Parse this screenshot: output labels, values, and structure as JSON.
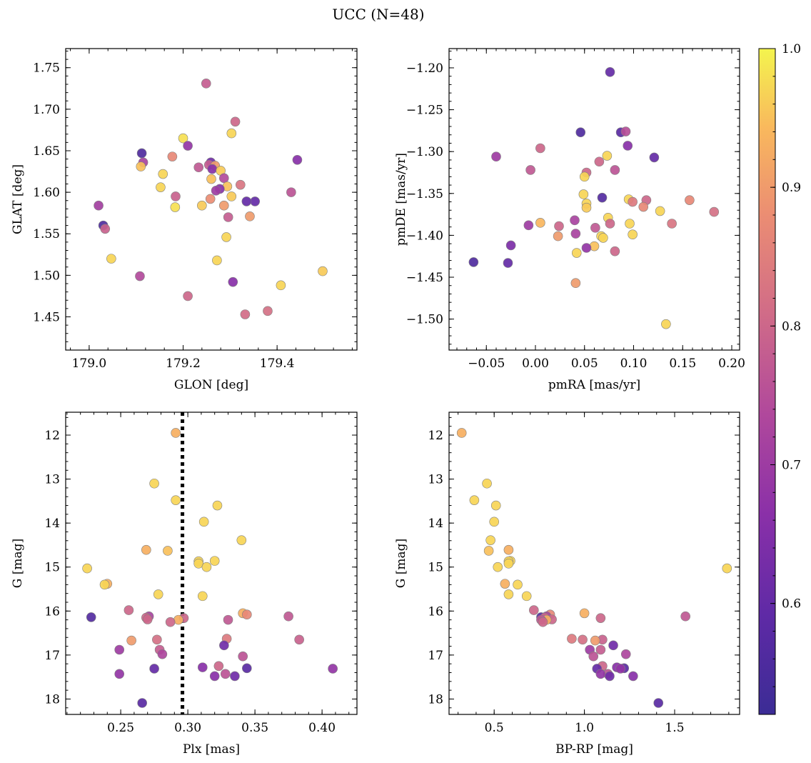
{
  "figure": {
    "title": "UCC (N=48)"
  },
  "colorbar": {
    "min": 0.52,
    "max": 1.0,
    "ticks": [
      0.6,
      0.7,
      0.8,
      0.9,
      1.0
    ],
    "tick_labels": [
      "0.6",
      "0.7",
      "0.8",
      "0.9",
      "1.0"
    ],
    "colormap": "plasma"
  },
  "chart_data": [
    {
      "type": "scatter",
      "id": "glon_glat",
      "xlabel": "GLON [deg]",
      "ylabel": "GLAT [deg]",
      "xlim": [
        178.95,
        179.57
      ],
      "ylim": [
        1.41,
        1.773
      ],
      "y_inverted": false,
      "xticks": [
        179.0,
        179.2,
        179.4
      ],
      "xtick_labels": [
        "179.0",
        "179.2",
        "179.4"
      ],
      "yticks": [
        1.45,
        1.5,
        1.55,
        1.6,
        1.65,
        1.7,
        1.75
      ],
      "ytick_labels": [
        "1.45",
        "1.50",
        "1.55",
        "1.60",
        "1.65",
        "1.70",
        "1.75"
      ],
      "points": [
        {
          "x": 179.249,
          "y": 1.731,
          "c": 0.78
        },
        {
          "x": 179.311,
          "y": 1.685,
          "c": 0.8
        },
        {
          "x": 179.303,
          "y": 1.671,
          "c": 0.97
        },
        {
          "x": 179.2,
          "y": 1.665,
          "c": 0.98
        },
        {
          "x": 179.21,
          "y": 1.656,
          "c": 0.68
        },
        {
          "x": 179.112,
          "y": 1.647,
          "c": 0.56
        },
        {
          "x": 179.177,
          "y": 1.643,
          "c": 0.87
        },
        {
          "x": 179.443,
          "y": 1.639,
          "c": 0.66
        },
        {
          "x": 179.259,
          "y": 1.636,
          "c": 0.62
        },
        {
          "x": 179.115,
          "y": 1.636,
          "c": 0.72
        },
        {
          "x": 179.255,
          "y": 1.633,
          "c": 0.78
        },
        {
          "x": 179.268,
          "y": 1.632,
          "c": 0.9
        },
        {
          "x": 179.11,
          "y": 1.631,
          "c": 0.95
        },
        {
          "x": 179.233,
          "y": 1.63,
          "c": 0.77
        },
        {
          "x": 179.262,
          "y": 1.628,
          "c": 0.66
        },
        {
          "x": 179.28,
          "y": 1.626,
          "c": 0.96
        },
        {
          "x": 179.157,
          "y": 1.622,
          "c": 0.97
        },
        {
          "x": 179.287,
          "y": 1.617,
          "c": 0.74
        },
        {
          "x": 179.26,
          "y": 1.616,
          "c": 0.95
        },
        {
          "x": 179.322,
          "y": 1.609,
          "c": 0.83
        },
        {
          "x": 179.294,
          "y": 1.607,
          "c": 0.95
        },
        {
          "x": 179.152,
          "y": 1.606,
          "c": 0.97
        },
        {
          "x": 179.278,
          "y": 1.604,
          "c": 0.66
        },
        {
          "x": 179.27,
          "y": 1.602,
          "c": 0.7
        },
        {
          "x": 179.43,
          "y": 1.6,
          "c": 0.76
        },
        {
          "x": 179.184,
          "y": 1.595,
          "c": 0.79
        },
        {
          "x": 179.303,
          "y": 1.595,
          "c": 0.96
        },
        {
          "x": 179.258,
          "y": 1.592,
          "c": 0.88
        },
        {
          "x": 179.353,
          "y": 1.589,
          "c": 0.6
        },
        {
          "x": 179.335,
          "y": 1.589,
          "c": 0.6
        },
        {
          "x": 179.02,
          "y": 1.584,
          "c": 0.71
        },
        {
          "x": 179.24,
          "y": 1.584,
          "c": 0.96
        },
        {
          "x": 179.287,
          "y": 1.584,
          "c": 0.9
        },
        {
          "x": 179.183,
          "y": 1.582,
          "c": 0.98
        },
        {
          "x": 179.342,
          "y": 1.571,
          "c": 0.9
        },
        {
          "x": 179.296,
          "y": 1.57,
          "c": 0.78
        },
        {
          "x": 179.03,
          "y": 1.56,
          "c": 0.56
        },
        {
          "x": 179.034,
          "y": 1.556,
          "c": 0.79
        },
        {
          "x": 179.292,
          "y": 1.546,
          "c": 0.97
        },
        {
          "x": 179.047,
          "y": 1.52,
          "c": 0.97
        },
        {
          "x": 179.272,
          "y": 1.518,
          "c": 0.97
        },
        {
          "x": 179.497,
          "y": 1.505,
          "c": 0.96
        },
        {
          "x": 179.108,
          "y": 1.499,
          "c": 0.74
        },
        {
          "x": 179.306,
          "y": 1.492,
          "c": 0.66
        },
        {
          "x": 179.408,
          "y": 1.488,
          "c": 0.97
        },
        {
          "x": 179.21,
          "y": 1.475,
          "c": 0.8
        },
        {
          "x": 179.38,
          "y": 1.457,
          "c": 0.82
        },
        {
          "x": 179.332,
          "y": 1.453,
          "c": 0.81
        }
      ]
    },
    {
      "type": "scatter",
      "id": "pmra_pmde",
      "xlabel": "pmRA [mas/yr]",
      "ylabel": "pmDE [mas/yr]",
      "xlim": [
        -0.088,
        0.208
      ],
      "ylim": [
        -1.537,
        -1.177
      ],
      "y_inverted": false,
      "xticks": [
        -0.05,
        0.0,
        0.05,
        0.1,
        0.15,
        0.2
      ],
      "xtick_labels": [
        "−0.05",
        "0.00",
        "0.05",
        "0.10",
        "0.15",
        "0.20"
      ],
      "yticks": [
        -1.5,
        -1.45,
        -1.4,
        -1.35,
        -1.3,
        -1.25,
        -1.2
      ],
      "ytick_labels": [
        "−1.50",
        "−1.45",
        "−1.40",
        "−1.35",
        "−1.30",
        "−1.25",
        "−1.20"
      ],
      "points": [
        {
          "x": 0.076,
          "y": -1.205,
          "c": 0.6
        },
        {
          "x": 0.046,
          "y": -1.277,
          "c": 0.56
        },
        {
          "x": 0.087,
          "y": -1.277,
          "c": 0.58
        },
        {
          "x": 0.092,
          "y": -1.276,
          "c": 0.75
        },
        {
          "x": 0.094,
          "y": -1.293,
          "c": 0.66
        },
        {
          "x": 0.005,
          "y": -1.296,
          "c": 0.8
        },
        {
          "x": -0.04,
          "y": -1.306,
          "c": 0.7
        },
        {
          "x": 0.073,
          "y": -1.305,
          "c": 0.97
        },
        {
          "x": 0.121,
          "y": -1.307,
          "c": 0.6
        },
        {
          "x": 0.065,
          "y": -1.312,
          "c": 0.8
        },
        {
          "x": -0.005,
          "y": -1.322,
          "c": 0.77
        },
        {
          "x": 0.081,
          "y": -1.322,
          "c": 0.76
        },
        {
          "x": 0.052,
          "y": -1.325,
          "c": 0.8
        },
        {
          "x": 0.05,
          "y": -1.33,
          "c": 0.97
        },
        {
          "x": 0.049,
          "y": -1.351,
          "c": 0.97
        },
        {
          "x": 0.068,
          "y": -1.355,
          "c": 0.57
        },
        {
          "x": 0.095,
          "y": -1.357,
          "c": 0.97
        },
        {
          "x": 0.113,
          "y": -1.358,
          "c": 0.8
        },
        {
          "x": 0.157,
          "y": -1.358,
          "c": 0.87
        },
        {
          "x": 0.099,
          "y": -1.36,
          "c": 0.84
        },
        {
          "x": 0.052,
          "y": -1.362,
          "c": 0.97
        },
        {
          "x": 0.11,
          "y": -1.366,
          "c": 0.87
        },
        {
          "x": 0.052,
          "y": -1.367,
          "c": 0.96
        },
        {
          "x": 0.127,
          "y": -1.371,
          "c": 0.97
        },
        {
          "x": 0.182,
          "y": -1.372,
          "c": 0.82
        },
        {
          "x": 0.074,
          "y": -1.379,
          "c": 0.97
        },
        {
          "x": 0.04,
          "y": -1.382,
          "c": 0.72
        },
        {
          "x": 0.005,
          "y": -1.385,
          "c": 0.94
        },
        {
          "x": 0.076,
          "y": -1.386,
          "c": 0.8
        },
        {
          "x": 0.096,
          "y": -1.386,
          "c": 0.97
        },
        {
          "x": 0.139,
          "y": -1.386,
          "c": 0.83
        },
        {
          "x": -0.007,
          "y": -1.388,
          "c": 0.7
        },
        {
          "x": 0.024,
          "y": -1.389,
          "c": 0.8
        },
        {
          "x": 0.061,
          "y": -1.391,
          "c": 0.77
        },
        {
          "x": 0.041,
          "y": -1.398,
          "c": 0.72
        },
        {
          "x": 0.099,
          "y": -1.399,
          "c": 0.97
        },
        {
          "x": 0.023,
          "y": -1.401,
          "c": 0.9
        },
        {
          "x": 0.067,
          "y": -1.401,
          "c": 0.97
        },
        {
          "x": 0.069,
          "y": -1.403,
          "c": 0.97
        },
        {
          "x": -0.025,
          "y": -1.412,
          "c": 0.64
        },
        {
          "x": 0.06,
          "y": -1.413,
          "c": 0.95
        },
        {
          "x": 0.052,
          "y": -1.415,
          "c": 0.68
        },
        {
          "x": 0.081,
          "y": -1.419,
          "c": 0.8
        },
        {
          "x": 0.042,
          "y": -1.421,
          "c": 0.97
        },
        {
          "x": -0.063,
          "y": -1.432,
          "c": 0.56
        },
        {
          "x": -0.028,
          "y": -1.433,
          "c": 0.6
        },
        {
          "x": 0.041,
          "y": -1.457,
          "c": 0.9
        },
        {
          "x": 0.133,
          "y": -1.506,
          "c": 0.97
        }
      ]
    },
    {
      "type": "scatter",
      "id": "plx_g",
      "xlabel": "Plx [mas]",
      "ylabel": "G [mag]",
      "xlim": [
        0.209,
        0.426
      ],
      "ylim": [
        18.35,
        11.48
      ],
      "y_inverted": true,
      "vline": {
        "x": 0.296,
        "style": "dotted"
      },
      "xticks": [
        0.25,
        0.3,
        0.35,
        0.4
      ],
      "xtick_labels": [
        "0.25",
        "0.30",
        "0.35",
        "0.40"
      ],
      "yticks": [
        12,
        13,
        14,
        15,
        16,
        17,
        18
      ],
      "ytick_labels": [
        "12",
        "13",
        "14",
        "15",
        "16",
        "17",
        "18"
      ],
      "points": [
        {
          "x": 0.291,
          "y": 11.95,
          "c": 0.93
        },
        {
          "x": 0.275,
          "y": 13.1,
          "c": 0.97
        },
        {
          "x": 0.291,
          "y": 13.48,
          "c": 0.97
        },
        {
          "x": 0.322,
          "y": 13.6,
          "c": 0.97
        },
        {
          "x": 0.312,
          "y": 13.97,
          "c": 0.97
        },
        {
          "x": 0.34,
          "y": 14.39,
          "c": 0.97
        },
        {
          "x": 0.269,
          "y": 14.61,
          "c": 0.93
        },
        {
          "x": 0.285,
          "y": 14.63,
          "c": 0.95
        },
        {
          "x": 0.32,
          "y": 14.86,
          "c": 0.97
        },
        {
          "x": 0.308,
          "y": 14.87,
          "c": 0.97
        },
        {
          "x": 0.308,
          "y": 14.92,
          "c": 0.97
        },
        {
          "x": 0.314,
          "y": 15.0,
          "c": 0.97
        },
        {
          "x": 0.225,
          "y": 15.03,
          "c": 0.97
        },
        {
          "x": 0.24,
          "y": 15.38,
          "c": 0.93
        },
        {
          "x": 0.238,
          "y": 15.4,
          "c": 0.97
        },
        {
          "x": 0.278,
          "y": 15.62,
          "c": 0.97
        },
        {
          "x": 0.311,
          "y": 15.66,
          "c": 0.97
        },
        {
          "x": 0.256,
          "y": 15.98,
          "c": 0.8
        },
        {
          "x": 0.341,
          "y": 16.05,
          "c": 0.93
        },
        {
          "x": 0.344,
          "y": 16.08,
          "c": 0.87
        },
        {
          "x": 0.375,
          "y": 16.12,
          "c": 0.77
        },
        {
          "x": 0.228,
          "y": 16.14,
          "c": 0.57
        },
        {
          "x": 0.271,
          "y": 16.12,
          "c": 0.72
        },
        {
          "x": 0.269,
          "y": 16.15,
          "c": 0.8
        },
        {
          "x": 0.297,
          "y": 16.16,
          "c": 0.8
        },
        {
          "x": 0.27,
          "y": 16.19,
          "c": 0.8
        },
        {
          "x": 0.293,
          "y": 16.2,
          "c": 0.93
        },
        {
          "x": 0.33,
          "y": 16.2,
          "c": 0.77
        },
        {
          "x": 0.287,
          "y": 16.25,
          "c": 0.8
        },
        {
          "x": 0.329,
          "y": 16.63,
          "c": 0.84
        },
        {
          "x": 0.277,
          "y": 16.65,
          "c": 0.82
        },
        {
          "x": 0.383,
          "y": 16.65,
          "c": 0.79
        },
        {
          "x": 0.258,
          "y": 16.67,
          "c": 0.9
        },
        {
          "x": 0.327,
          "y": 16.78,
          "c": 0.62
        },
        {
          "x": 0.249,
          "y": 16.88,
          "c": 0.7
        },
        {
          "x": 0.279,
          "y": 16.88,
          "c": 0.78
        },
        {
          "x": 0.281,
          "y": 16.98,
          "c": 0.73
        },
        {
          "x": 0.341,
          "y": 17.03,
          "c": 0.76
        },
        {
          "x": 0.323,
          "y": 17.25,
          "c": 0.8
        },
        {
          "x": 0.311,
          "y": 17.28,
          "c": 0.66
        },
        {
          "x": 0.344,
          "y": 17.3,
          "c": 0.58
        },
        {
          "x": 0.275,
          "y": 17.31,
          "c": 0.6
        },
        {
          "x": 0.408,
          "y": 17.31,
          "c": 0.68
        },
        {
          "x": 0.328,
          "y": 17.43,
          "c": 0.76
        },
        {
          "x": 0.249,
          "y": 17.43,
          "c": 0.68
        },
        {
          "x": 0.32,
          "y": 17.48,
          "c": 0.66
        },
        {
          "x": 0.335,
          "y": 17.48,
          "c": 0.62
        },
        {
          "x": 0.266,
          "y": 18.09,
          "c": 0.58
        }
      ]
    },
    {
      "type": "scatter",
      "id": "bprp_g",
      "xlabel": "BP-RP [mag]",
      "ylabel": "G [mag]",
      "xlim": [
        0.25,
        1.86
      ],
      "ylim": [
        18.35,
        11.48
      ],
      "y_inverted": true,
      "xticks": [
        0.5,
        1.0,
        1.5
      ],
      "xtick_labels": [
        "0.5",
        "1.0",
        "1.5"
      ],
      "yticks": [
        12,
        13,
        14,
        15,
        16,
        17,
        18
      ],
      "ytick_labels": [
        "12",
        "13",
        "14",
        "15",
        "16",
        "17",
        "18"
      ],
      "points": [
        {
          "x": 0.32,
          "y": 11.95,
          "c": 0.93
        },
        {
          "x": 0.46,
          "y": 13.1,
          "c": 0.97
        },
        {
          "x": 0.39,
          "y": 13.48,
          "c": 0.97
        },
        {
          "x": 0.51,
          "y": 13.6,
          "c": 0.97
        },
        {
          "x": 0.5,
          "y": 13.97,
          "c": 0.97
        },
        {
          "x": 0.48,
          "y": 14.39,
          "c": 0.97
        },
        {
          "x": 0.58,
          "y": 14.61,
          "c": 0.93
        },
        {
          "x": 0.47,
          "y": 14.63,
          "c": 0.95
        },
        {
          "x": 0.59,
          "y": 14.86,
          "c": 0.97
        },
        {
          "x": 0.58,
          "y": 14.87,
          "c": 0.97
        },
        {
          "x": 0.58,
          "y": 14.92,
          "c": 0.97
        },
        {
          "x": 0.52,
          "y": 15.0,
          "c": 0.97
        },
        {
          "x": 1.79,
          "y": 15.03,
          "c": 0.97
        },
        {
          "x": 0.56,
          "y": 15.38,
          "c": 0.93
        },
        {
          "x": 0.63,
          "y": 15.4,
          "c": 0.97
        },
        {
          "x": 0.58,
          "y": 15.62,
          "c": 0.97
        },
        {
          "x": 0.68,
          "y": 15.66,
          "c": 0.97
        },
        {
          "x": 0.72,
          "y": 15.98,
          "c": 0.8
        },
        {
          "x": 1.0,
          "y": 16.05,
          "c": 0.93
        },
        {
          "x": 0.81,
          "y": 16.08,
          "c": 0.87
        },
        {
          "x": 1.56,
          "y": 16.12,
          "c": 0.77
        },
        {
          "x": 0.76,
          "y": 16.14,
          "c": 0.57
        },
        {
          "x": 0.79,
          "y": 16.12,
          "c": 0.72
        },
        {
          "x": 0.78,
          "y": 16.15,
          "c": 0.8
        },
        {
          "x": 1.09,
          "y": 16.16,
          "c": 0.8
        },
        {
          "x": 0.82,
          "y": 16.19,
          "c": 0.8
        },
        {
          "x": 0.79,
          "y": 16.2,
          "c": 0.93
        },
        {
          "x": 0.76,
          "y": 16.2,
          "c": 0.77
        },
        {
          "x": 0.77,
          "y": 16.25,
          "c": 0.8
        },
        {
          "x": 0.93,
          "y": 16.63,
          "c": 0.84
        },
        {
          "x": 0.99,
          "y": 16.65,
          "c": 0.82
        },
        {
          "x": 1.1,
          "y": 16.65,
          "c": 0.79
        },
        {
          "x": 1.06,
          "y": 16.67,
          "c": 0.9
        },
        {
          "x": 1.16,
          "y": 16.78,
          "c": 0.62
        },
        {
          "x": 1.03,
          "y": 16.88,
          "c": 0.7
        },
        {
          "x": 1.09,
          "y": 16.88,
          "c": 0.78
        },
        {
          "x": 1.23,
          "y": 16.98,
          "c": 0.73
        },
        {
          "x": 1.05,
          "y": 17.03,
          "c": 0.76
        },
        {
          "x": 1.1,
          "y": 17.25,
          "c": 0.8
        },
        {
          "x": 1.18,
          "y": 17.28,
          "c": 0.66
        },
        {
          "x": 1.22,
          "y": 17.3,
          "c": 0.58
        },
        {
          "x": 1.07,
          "y": 17.31,
          "c": 0.6
        },
        {
          "x": 1.2,
          "y": 17.31,
          "c": 0.68
        },
        {
          "x": 1.13,
          "y": 17.43,
          "c": 0.76
        },
        {
          "x": 1.09,
          "y": 17.43,
          "c": 0.68
        },
        {
          "x": 1.27,
          "y": 17.48,
          "c": 0.66
        },
        {
          "x": 1.14,
          "y": 17.48,
          "c": 0.62
        },
        {
          "x": 1.41,
          "y": 18.09,
          "c": 0.58
        }
      ]
    }
  ]
}
